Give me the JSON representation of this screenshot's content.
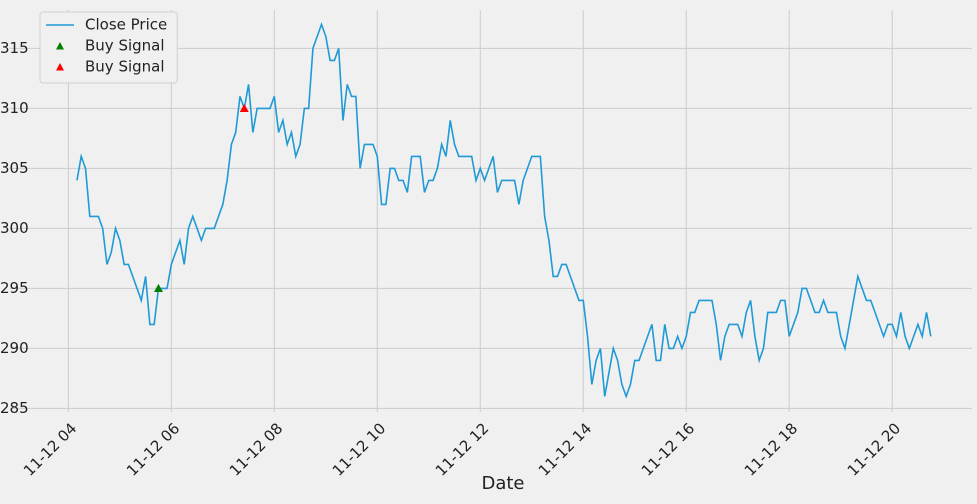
{
  "chart_data": {
    "type": "line",
    "x_label": "Date",
    "xlim": [
      172,
      1293
    ],
    "ylim": [
      284.7,
      318.2
    ],
    "xticks": [
      {
        "value": 240,
        "label": "11-12 04"
      },
      {
        "value": 360,
        "label": "11-12 06"
      },
      {
        "value": 480,
        "label": "11-12 08"
      },
      {
        "value": 600,
        "label": "11-12 10"
      },
      {
        "value": 720,
        "label": "11-12 12"
      },
      {
        "value": 840,
        "label": "11-12 14"
      },
      {
        "value": 960,
        "label": "11-12 16"
      },
      {
        "value": 1080,
        "label": "11-12 18"
      },
      {
        "value": 1200,
        "label": "11-12 20"
      }
    ],
    "yticks": [
      285,
      290,
      295,
      300,
      305,
      310,
      315
    ],
    "grid": true,
    "legend": "upper-left",
    "series": [
      {
        "name": "Close Price",
        "type": "line",
        "color": "#1f9ad6",
        "x": [
          250,
          255,
          260,
          265,
          270,
          275,
          280,
          285,
          290,
          295,
          300,
          305,
          310,
          315,
          320,
          325,
          330,
          335,
          340,
          345,
          350,
          355,
          360,
          365,
          370,
          375,
          380,
          385,
          390,
          395,
          400,
          405,
          410,
          415,
          420,
          425,
          430,
          435,
          440,
          445,
          450,
          455,
          460,
          465,
          470,
          475,
          480,
          485,
          490,
          495,
          500,
          505,
          510,
          515,
          520,
          525,
          530,
          535,
          540,
          545,
          550,
          555,
          560,
          565,
          570,
          575,
          580,
          585,
          590,
          595,
          600,
          605,
          610,
          615,
          620,
          625,
          630,
          635,
          640,
          645,
          650,
          655,
          660,
          665,
          670,
          675,
          680,
          685,
          690,
          695,
          700,
          705,
          710,
          715,
          720,
          725,
          730,
          735,
          740,
          745,
          750,
          755,
          760,
          765,
          770,
          775,
          780,
          785,
          790,
          795,
          800,
          805,
          810,
          815,
          820,
          825,
          830,
          835,
          840,
          845,
          850,
          855,
          860,
          865,
          870,
          875,
          880,
          885,
          890,
          895,
          900,
          905,
          910,
          915,
          920,
          925,
          930,
          935,
          940,
          945,
          950,
          955,
          960,
          965,
          970,
          975,
          980,
          985,
          990,
          995,
          1000,
          1005,
          1010,
          1015,
          1020,
          1025,
          1030,
          1035,
          1040,
          1045,
          1050,
          1055,
          1060,
          1065,
          1070,
          1075,
          1080,
          1085,
          1090,
          1095,
          1100,
          1105,
          1110,
          1115,
          1120,
          1125,
          1130,
          1135,
          1140,
          1145,
          1150,
          1155,
          1160,
          1165,
          1170,
          1175,
          1180,
          1185,
          1190,
          1195,
          1200,
          1205,
          1210,
          1215,
          1220,
          1225,
          1230,
          1235,
          1240,
          1245
        ],
        "values": [
          304,
          306,
          305,
          301,
          301,
          301,
          300,
          297,
          298,
          300,
          299,
          297,
          297,
          296,
          295,
          294,
          296,
          292,
          292,
          295,
          295,
          295,
          297,
          298,
          299,
          297,
          300,
          301,
          300,
          299,
          300,
          300,
          300,
          301,
          302,
          304,
          307,
          308,
          311,
          310,
          312,
          308,
          310,
          310,
          310,
          310,
          311,
          308,
          309,
          307,
          308,
          306,
          307,
          310,
          310,
          315,
          316,
          317,
          316,
          314,
          314,
          315,
          309,
          312,
          311,
          311,
          305,
          307,
          307,
          307,
          306,
          302,
          302,
          305,
          305,
          304,
          304,
          303,
          306,
          306,
          306,
          303,
          304,
          304,
          305,
          307,
          306,
          309,
          307,
          306,
          306,
          306,
          306,
          304,
          305,
          304,
          305,
          306,
          303,
          304,
          304,
          304,
          304,
          302,
          304,
          305,
          306,
          306,
          306,
          301,
          299,
          296,
          296,
          297,
          297,
          296,
          295,
          294,
          294,
          291,
          287,
          289,
          290,
          286,
          288,
          290,
          289,
          287,
          286,
          287,
          289,
          289,
          290,
          291,
          292,
          289,
          289,
          292,
          290,
          290,
          291,
          290,
          291,
          293,
          293,
          294,
          294,
          294,
          294,
          292,
          289,
          291,
          292,
          292,
          292,
          291,
          293,
          294,
          291,
          289,
          290,
          293,
          293,
          293,
          294,
          294,
          291,
          292,
          293,
          295,
          295,
          294,
          293,
          293,
          294,
          293,
          293,
          293,
          291,
          290,
          292,
          294,
          296,
          295,
          294,
          294,
          293,
          292,
          291,
          292,
          292,
          291,
          293,
          291,
          290,
          291,
          292,
          291,
          293,
          291
        ]
      },
      {
        "name": "Buy Signal",
        "type": "scatter",
        "color": "green",
        "x": [
          345
        ],
        "values": [
          295
        ]
      },
      {
        "name": "Buy Signal",
        "type": "scatter",
        "color": "red",
        "x": [
          445
        ],
        "values": [
          310
        ]
      }
    ]
  }
}
